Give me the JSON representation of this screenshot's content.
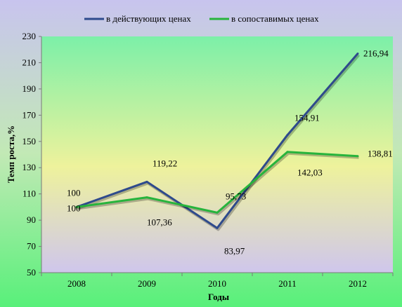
{
  "chart_data": {
    "type": "line",
    "title": "",
    "xlabel": "Годы",
    "ylabel": "Темп роста,%",
    "categories": [
      "2008",
      "2009",
      "2010",
      "2011",
      "2012"
    ],
    "ylim": [
      50,
      230
    ],
    "yticks": [
      50,
      70,
      90,
      110,
      130,
      150,
      170,
      190,
      210,
      230
    ],
    "grid": false,
    "legend_position": "top",
    "series": [
      {
        "name": "в действующих ценах",
        "values": [
          100,
          119.22,
          83.97,
          154.91,
          216.94
        ],
        "labels": [
          "100",
          "119,22",
          "83,97",
          "154,91",
          "216,94"
        ],
        "color": "#2e4a8c"
      },
      {
        "name": "в сопоставимых ценах",
        "values": [
          100,
          107.36,
          95.73,
          142.03,
          138.81
        ],
        "labels": [
          "100",
          "107,36",
          "95,73",
          "142,03",
          "138,81"
        ],
        "color": "#27b43c"
      }
    ]
  }
}
